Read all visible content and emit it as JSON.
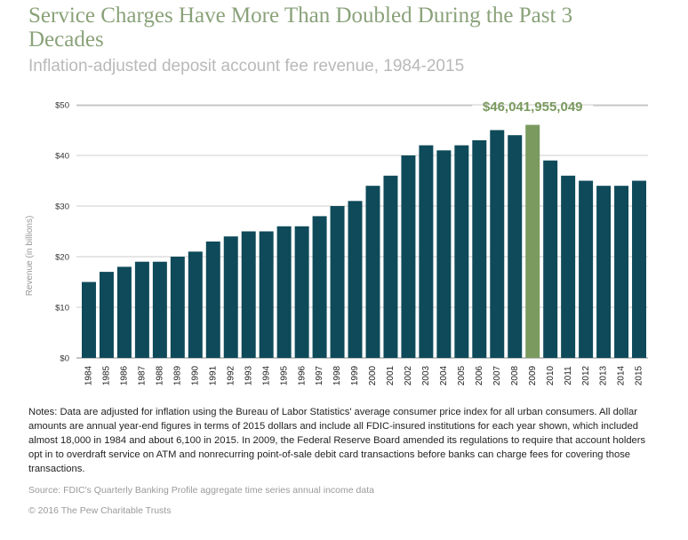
{
  "chart_data": {
    "type": "bar",
    "title": "Service Charges Have More Than Doubled During the Past 3 Decades",
    "subtitle": "Inflation-adjusted deposit account fee revenue, 1984-2015",
    "xlabel": "",
    "ylabel": "Revenue (in billions)",
    "ylim": [
      0,
      50
    ],
    "yticks": [
      "$0",
      "$10",
      "$20",
      "$30",
      "$40",
      "$50"
    ],
    "grid": true,
    "categories": [
      "1984",
      "1985",
      "1986",
      "1987",
      "1988",
      "1989",
      "1990",
      "1991",
      "1992",
      "1993",
      "1994",
      "1995",
      "1996",
      "1997",
      "1998",
      "1999",
      "2000",
      "2001",
      "2002",
      "2003",
      "2004",
      "2005",
      "2006",
      "2007",
      "2008",
      "2009",
      "2010",
      "2011",
      "2012",
      "2013",
      "2014",
      "2015"
    ],
    "values": [
      15,
      17,
      18,
      19,
      19,
      20,
      21,
      23,
      24,
      25,
      25,
      26,
      26,
      28,
      30,
      31,
      34,
      36,
      40,
      42,
      41,
      42,
      43,
      45,
      44,
      46.04,
      39,
      36,
      35,
      34,
      34,
      35
    ],
    "highlight": {
      "category": "2009",
      "label": "$46,041,955,049",
      "color": "#7a9a5f"
    },
    "bar_color": "#0e4a59"
  },
  "notes": "Notes: Data are adjusted for inflation using the Bureau of Labor Statistics' average consumer price index for all urban consumers. All dollar amounts are annual year-end figures in terms of 2015 dollars and include all FDIC-insured institutions for each year shown, which included almost 18,000 in 1984 and about 6,100 in 2015. In 2009, the Federal Reserve Board amended its regulations to require that account holders opt in to overdraft service on ATM and nonrecurring point-of-sale debit card transactions before banks can charge fees for covering those transactions.",
  "source": "Source: FDIC's Quarterly Banking Profile aggregate time series annual income data",
  "copyright": "© 2016 The Pew Charitable Trusts",
  "colors": {
    "title": "#8aa27a",
    "subtitle": "#b9b9b9",
    "bar": "#0e4a59",
    "highlight": "#7a9a5f",
    "grid": "#cccccc"
  }
}
